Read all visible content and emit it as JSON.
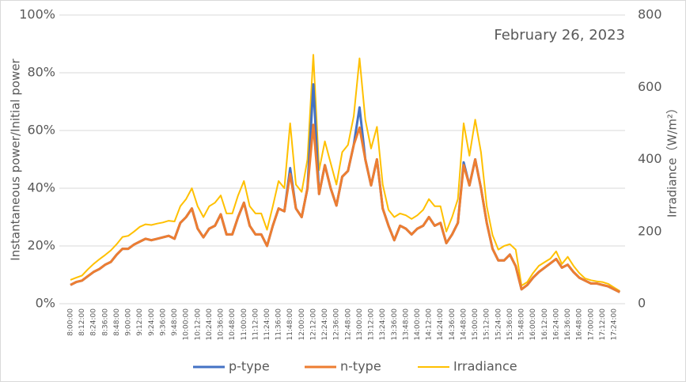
{
  "chart_data": {
    "type": "line",
    "annotation": "February 26, 2023",
    "y_label": "Instantaneous power/Initial power",
    "y2_label": "Irradiance（W/m²）",
    "categories": [
      "8:00:00",
      null,
      "8:12:00",
      null,
      "8:24:00",
      null,
      "8:36:00",
      null,
      "8:48:00",
      null,
      "9:00:00",
      null,
      "9:12:00",
      null,
      "9:24:00",
      null,
      "9:36:00",
      null,
      "9:48:00",
      null,
      "10:00:00",
      null,
      "10:12:00",
      null,
      "10:24:00",
      null,
      "10:36:00",
      null,
      "10:48:00",
      null,
      "11:00:00",
      null,
      "11:12:00",
      null,
      "11:24:00",
      null,
      "11:36:00",
      null,
      "11:48:00",
      null,
      "12:00:00",
      null,
      "12:12:00",
      null,
      "12:24:00",
      null,
      "12:36:00",
      null,
      "12:48:00",
      null,
      "13:00:00",
      null,
      "13:12:00",
      null,
      "13:24:00",
      null,
      "13:36:00",
      null,
      "13:48:00",
      null,
      "14:00:00",
      null,
      "14:12:00",
      null,
      "14:24:00",
      null,
      "14:36:00",
      null,
      "14:48:00",
      null,
      "15:00:00",
      null,
      "15:12:00",
      null,
      "15:24:00",
      null,
      "15:36:00",
      null,
      "15:48:00",
      null,
      "16:00:00",
      null,
      "16:12:00",
      null,
      "16:24:00",
      null,
      "16:36:00",
      null,
      "16:48:00",
      null,
      "17:00:00",
      null,
      "17:12:00",
      null,
      "17:24:00",
      null
    ],
    "series": [
      {
        "name": "p-type",
        "color": "#4472c4",
        "values": [
          6.5,
          7.5,
          8,
          9.5,
          11,
          12,
          13.5,
          14.5,
          17,
          19,
          19,
          20.5,
          21.5,
          22.5,
          22,
          22.5,
          23,
          23.5,
          22.5,
          28,
          30,
          33,
          26,
          23,
          26,
          27,
          31,
          24,
          24,
          30,
          35,
          27,
          24,
          24,
          20,
          27,
          33,
          32,
          47,
          33,
          30,
          40,
          76,
          38,
          48,
          40,
          34,
          44,
          46,
          55,
          68,
          50,
          41,
          50,
          33,
          27,
          22,
          27,
          26,
          24,
          26,
          27,
          30,
          27,
          28,
          21,
          24,
          28,
          49,
          41,
          50,
          40,
          28,
          19,
          15,
          15,
          17,
          13,
          5,
          6.5,
          9,
          11,
          12.5,
          14,
          15.5,
          12.5,
          13.5,
          11,
          9,
          8,
          7,
          7,
          6.5,
          6,
          5,
          4
        ]
      },
      {
        "name": "n-type",
        "color": "#ed7d31",
        "values": [
          6.5,
          7.5,
          8,
          9.5,
          11,
          12,
          13.5,
          14.5,
          17,
          19,
          19,
          20.5,
          21.5,
          22.5,
          22,
          22.5,
          23,
          23.5,
          22.5,
          28,
          30,
          33,
          26,
          23,
          26,
          27,
          31,
          24,
          24,
          30,
          35,
          27,
          24,
          24,
          20,
          27,
          33,
          32,
          45,
          33,
          30,
          40,
          62,
          38,
          48,
          40,
          34,
          44,
          46,
          55,
          61,
          50,
          41,
          50,
          33,
          27,
          22,
          27,
          26,
          24,
          26,
          27,
          30,
          27,
          28,
          21,
          24,
          28,
          48,
          41,
          50,
          40,
          28,
          19,
          15,
          15,
          17,
          13,
          5,
          6.5,
          9,
          11,
          12.5,
          14,
          15.5,
          12.5,
          13.5,
          11,
          9,
          8,
          7,
          7,
          6.5,
          6,
          5,
          4
        ]
      },
      {
        "name": "Irradiance",
        "color": "#ffc000",
        "axis": "y2",
        "values": [
          66,
          72,
          78,
          95,
          110,
          123,
          135,
          148,
          165,
          185,
          188,
          200,
          213,
          220,
          218,
          222,
          225,
          230,
          228,
          270,
          290,
          320,
          270,
          240,
          270,
          280,
          300,
          250,
          250,
          300,
          340,
          270,
          250,
          250,
          205,
          270,
          340,
          320,
          500,
          330,
          310,
          400,
          690,
          370,
          450,
          390,
          330,
          420,
          440,
          520,
          680,
          510,
          430,
          490,
          330,
          260,
          240,
          250,
          245,
          235,
          245,
          260,
          290,
          270,
          270,
          200,
          240,
          290,
          500,
          410,
          510,
          420,
          270,
          190,
          150,
          160,
          165,
          150,
          50,
          60,
          85,
          105,
          115,
          125,
          145,
          110,
          130,
          105,
          85,
          70,
          65,
          62,
          60,
          55,
          45,
          35
        ]
      }
    ],
    "ylim": [
      0,
      100
    ],
    "yticks": [
      {
        "value": 0,
        "label": "0%"
      },
      {
        "value": 20,
        "label": "20%"
      },
      {
        "value": 40,
        "label": "40%"
      },
      {
        "value": 60,
        "label": "60%"
      },
      {
        "value": 80,
        "label": "80%"
      },
      {
        "value": 100,
        "label": "100%"
      }
    ],
    "y2lim": [
      0,
      800
    ],
    "y2ticks": [
      0,
      200,
      400,
      600,
      800
    ],
    "grid": true,
    "legend": "bottom"
  }
}
